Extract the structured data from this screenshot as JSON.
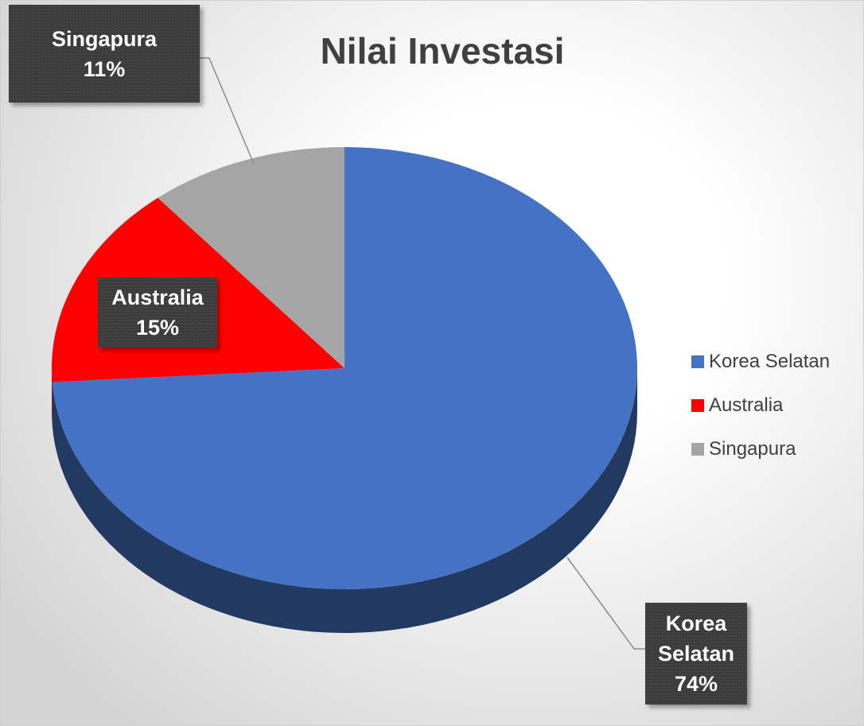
{
  "chart_data": {
    "type": "pie",
    "title": "Nilai Investasi",
    "categories": [
      "Korea Selatan",
      "Australia",
      "Singapura"
    ],
    "values": [
      74,
      15,
      11
    ],
    "value_labels": [
      "74%",
      "15%",
      "11%"
    ],
    "colors": [
      "#4472c4",
      "#ff0000",
      "#a5a5a5"
    ],
    "legend": "right"
  }
}
